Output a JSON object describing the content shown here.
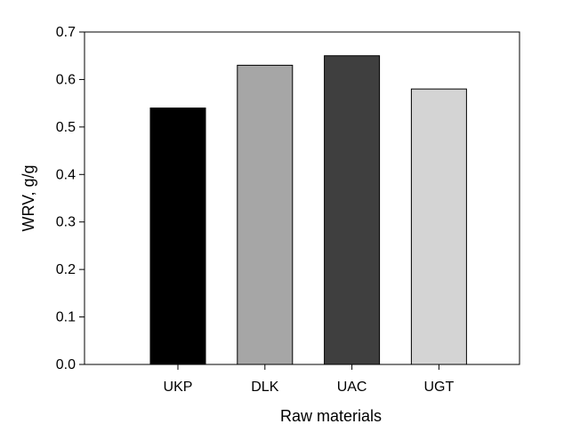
{
  "chart_data": {
    "type": "bar",
    "categories": [
      "UKP",
      "DLK",
      "UAC",
      "UGT"
    ],
    "values": [
      0.54,
      0.63,
      0.65,
      0.58
    ],
    "bar_colors": [
      "#000000",
      "#a6a6a6",
      "#3f3f3f",
      "#d4d4d4"
    ],
    "xlabel": "Raw materials",
    "ylabel": "WRV, g/g",
    "ylim": [
      0,
      0.7
    ],
    "yticks": [
      "0.0",
      "0.1",
      "0.2",
      "0.3",
      "0.4",
      "0.5",
      "0.6",
      "0.7"
    ],
    "grid": false,
    "legend": "none"
  }
}
